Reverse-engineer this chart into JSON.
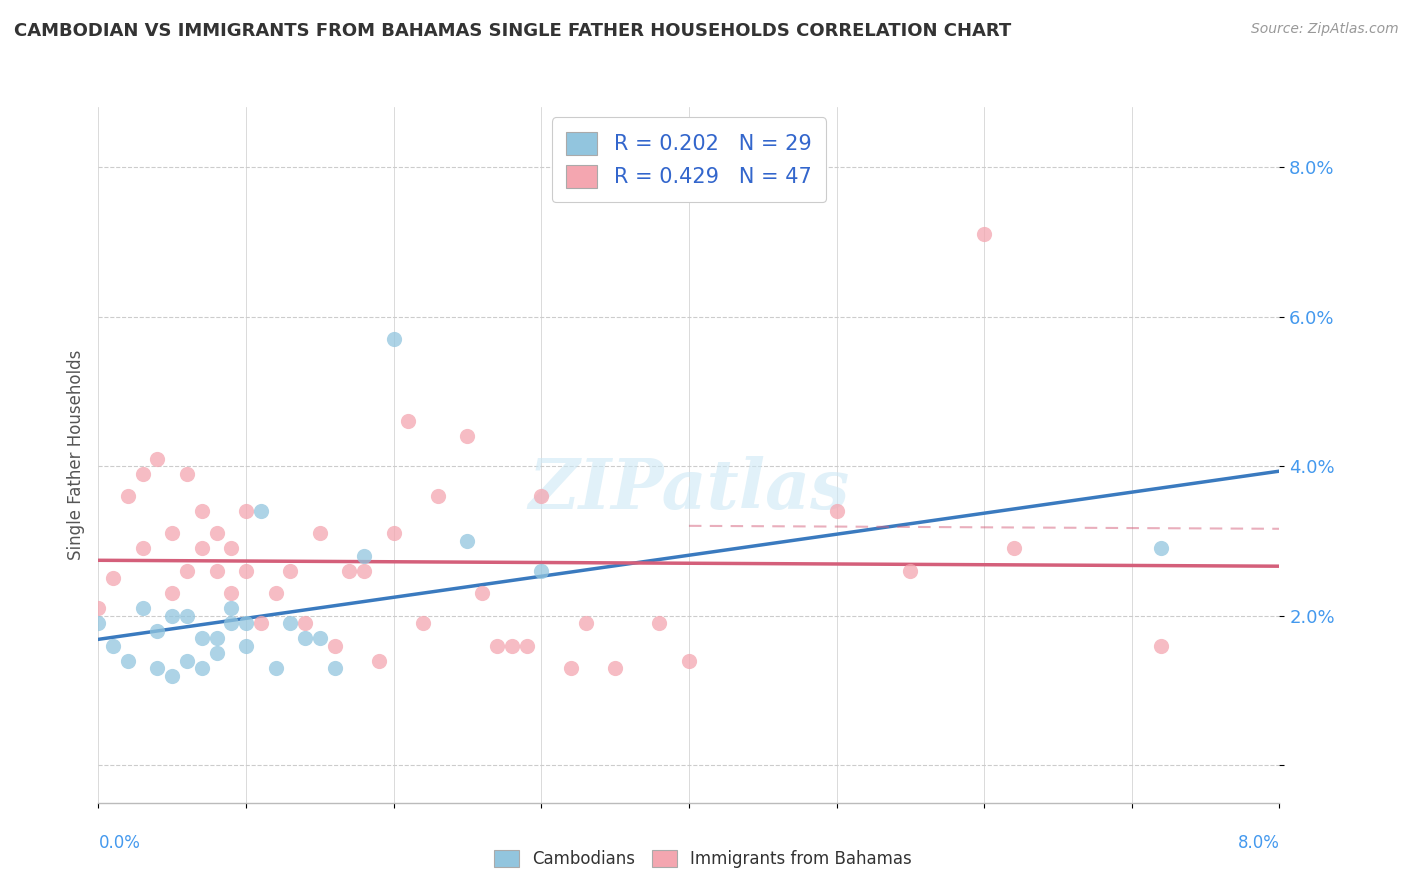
{
  "title": "CAMBODIAN VS IMMIGRANTS FROM BAHAMAS SINGLE FATHER HOUSEHOLDS CORRELATION CHART",
  "source": "Source: ZipAtlas.com",
  "ylabel": "Single Father Households",
  "xlim": [
    0.0,
    0.08
  ],
  "ylim": [
    -0.005,
    0.088
  ],
  "yticks": [
    0.0,
    0.02,
    0.04,
    0.06,
    0.08
  ],
  "ytick_labels": [
    "",
    "2.0%",
    "4.0%",
    "6.0%",
    "8.0%"
  ],
  "legend_r1": "R = 0.202   N = 29",
  "legend_r2": "R = 0.429   N = 47",
  "watermark": "ZIPatlas",
  "color_cambodian": "#92c5de",
  "color_bahamas": "#f4a6b0",
  "color_line_cambodian": "#3a7abf",
  "color_line_bahamas": "#d45f7a",
  "cambodian_x": [
    0.0,
    0.001,
    0.002,
    0.003,
    0.004,
    0.004,
    0.005,
    0.005,
    0.006,
    0.006,
    0.007,
    0.007,
    0.008,
    0.008,
    0.009,
    0.009,
    0.01,
    0.01,
    0.011,
    0.012,
    0.013,
    0.014,
    0.015,
    0.016,
    0.018,
    0.02,
    0.025,
    0.03,
    0.072
  ],
  "cambodian_y": [
    0.019,
    0.016,
    0.014,
    0.021,
    0.013,
    0.018,
    0.02,
    0.012,
    0.02,
    0.014,
    0.017,
    0.013,
    0.017,
    0.015,
    0.019,
    0.021,
    0.016,
    0.019,
    0.034,
    0.013,
    0.019,
    0.017,
    0.017,
    0.013,
    0.028,
    0.057,
    0.03,
    0.026,
    0.029
  ],
  "bahamas_x": [
    0.0,
    0.001,
    0.002,
    0.003,
    0.003,
    0.004,
    0.005,
    0.005,
    0.006,
    0.006,
    0.007,
    0.007,
    0.008,
    0.008,
    0.009,
    0.009,
    0.01,
    0.01,
    0.011,
    0.012,
    0.013,
    0.014,
    0.015,
    0.016,
    0.017,
    0.018,
    0.019,
    0.02,
    0.021,
    0.022,
    0.023,
    0.025,
    0.026,
    0.027,
    0.028,
    0.029,
    0.03,
    0.032,
    0.033,
    0.035,
    0.038,
    0.04,
    0.05,
    0.055,
    0.06,
    0.062,
    0.072
  ],
  "bahamas_y": [
    0.021,
    0.025,
    0.036,
    0.029,
    0.039,
    0.041,
    0.031,
    0.023,
    0.039,
    0.026,
    0.029,
    0.034,
    0.026,
    0.031,
    0.029,
    0.023,
    0.026,
    0.034,
    0.019,
    0.023,
    0.026,
    0.019,
    0.031,
    0.016,
    0.026,
    0.026,
    0.014,
    0.031,
    0.046,
    0.019,
    0.036,
    0.044,
    0.023,
    0.016,
    0.016,
    0.016,
    0.036,
    0.013,
    0.019,
    0.013,
    0.019,
    0.014,
    0.034,
    0.026,
    0.071,
    0.029,
    0.016
  ]
}
